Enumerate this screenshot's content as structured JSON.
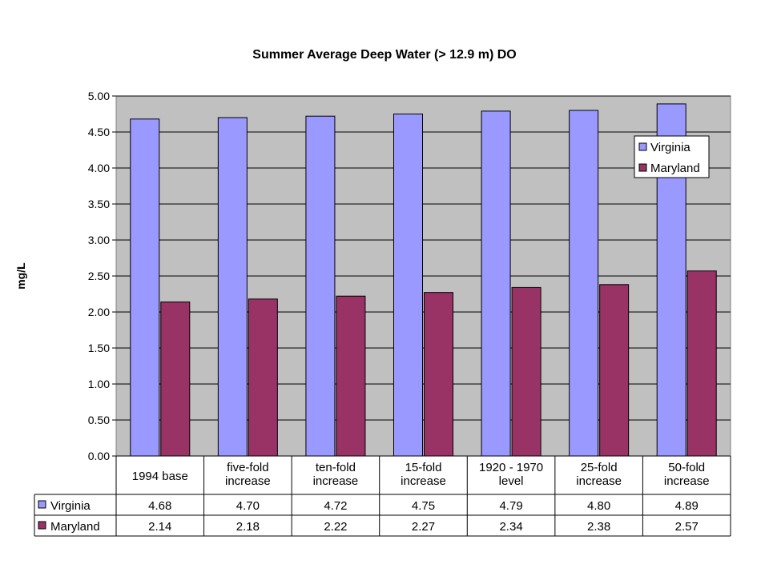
{
  "chart_data": {
    "type": "bar",
    "title": "Summer Average Deep Water (> 12.9 m) DO",
    "xlabel": "",
    "ylabel": "mg/L",
    "ylim": [
      0,
      5
    ],
    "yticks": [
      "0.00",
      "0.50",
      "1.00",
      "1.50",
      "2.00",
      "2.50",
      "3.00",
      "3.50",
      "4.00",
      "4.50",
      "5.00"
    ],
    "categories": [
      [
        "1994 base"
      ],
      [
        "five-fold",
        "increase"
      ],
      [
        "ten-fold",
        "increase"
      ],
      [
        "15-fold",
        "increase"
      ],
      [
        "1920 - 1970",
        "level"
      ],
      [
        "25-fold",
        "increase"
      ],
      [
        "50-fold",
        "increase"
      ]
    ],
    "series": [
      {
        "name": "Virginia",
        "color": "#9999ff",
        "values": [
          4.68,
          4.7,
          4.72,
          4.75,
          4.79,
          4.8,
          4.89
        ],
        "labels": [
          "4.68",
          "4.70",
          "4.72",
          "4.75",
          "4.79",
          "4.80",
          "4.89"
        ]
      },
      {
        "name": "Maryland",
        "color": "#993366",
        "values": [
          2.14,
          2.18,
          2.22,
          2.27,
          2.34,
          2.38,
          2.57
        ],
        "labels": [
          "2.14",
          "2.18",
          "2.22",
          "2.27",
          "2.34",
          "2.38",
          "2.57"
        ]
      }
    ],
    "legend_position": "top-right",
    "plot_background": "#c0c0c0",
    "data_table": true
  }
}
